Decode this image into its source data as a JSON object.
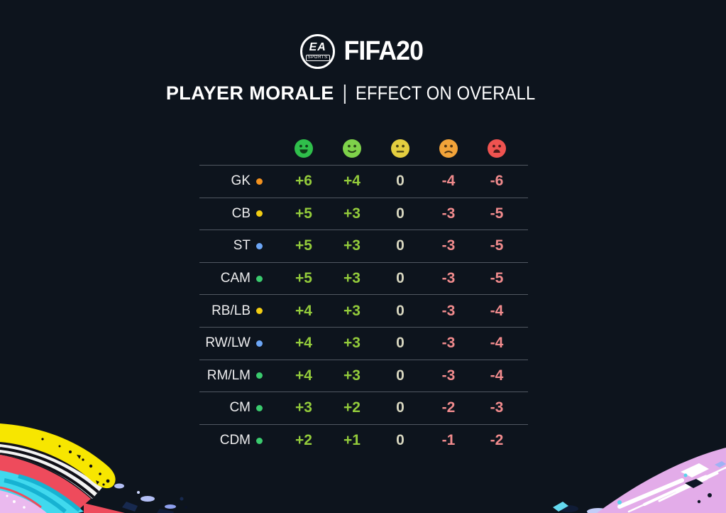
{
  "page": {
    "background": "#0d141d"
  },
  "header": {
    "logo": {
      "brand": "EA",
      "sports_label": "SPORTS",
      "game_title": "FIFA20"
    },
    "title": {
      "left": "PLAYER MORALE",
      "separator": "|",
      "right": "EFFECT ON OVERALL"
    }
  },
  "table": {
    "mood_columns": [
      {
        "name": "very-happy",
        "color": "#2fbf4b",
        "mouth": "open-smile"
      },
      {
        "name": "happy",
        "color": "#7ed24a",
        "mouth": "smile"
      },
      {
        "name": "neutral",
        "color": "#e4ce3f",
        "mouth": "flat"
      },
      {
        "name": "unhappy",
        "color": "#f2a339",
        "mouth": "frown"
      },
      {
        "name": "very-unhappy",
        "color": "#ef5350",
        "mouth": "open-frown"
      }
    ],
    "value_colors": {
      "positive": "#93cb3b",
      "zero": "#d7d6bf",
      "negative": "#f18b8d"
    },
    "dot_colors": {
      "orange": "#f3921f",
      "yellow": "#f2cd13",
      "blue": "#6ca6f6",
      "green": "#3bcb6e"
    },
    "rows": [
      {
        "position": "GK",
        "dot": "orange",
        "values": [
          "+6",
          "+4",
          "0",
          "-4",
          "-6"
        ]
      },
      {
        "position": "CB",
        "dot": "yellow",
        "values": [
          "+5",
          "+3",
          "0",
          "-3",
          "-5"
        ]
      },
      {
        "position": "ST",
        "dot": "blue",
        "values": [
          "+5",
          "+3",
          "0",
          "-3",
          "-5"
        ]
      },
      {
        "position": "CAM",
        "dot": "green",
        "values": [
          "+5",
          "+3",
          "0",
          "-3",
          "-5"
        ]
      },
      {
        "position": "RB/LB",
        "dot": "yellow",
        "values": [
          "+4",
          "+3",
          "0",
          "-3",
          "-4"
        ]
      },
      {
        "position": "RW/LW",
        "dot": "blue",
        "values": [
          "+4",
          "+3",
          "0",
          "-3",
          "-4"
        ]
      },
      {
        "position": "RM/LM",
        "dot": "green",
        "values": [
          "+4",
          "+3",
          "0",
          "-3",
          "-4"
        ]
      },
      {
        "position": "CM",
        "dot": "green",
        "values": [
          "+3",
          "+2",
          "0",
          "-2",
          "-3"
        ]
      },
      {
        "position": "CDM",
        "dot": "green",
        "values": [
          "+2",
          "+1",
          "0",
          "-1",
          "-2"
        ]
      }
    ]
  },
  "chart_data": {
    "type": "table",
    "title": "PLAYER MORALE | EFFECT ON OVERALL",
    "columns": [
      "very_happy",
      "happy",
      "neutral",
      "unhappy",
      "very_unhappy"
    ],
    "rows": [
      {
        "position": "GK",
        "values": [
          6,
          4,
          0,
          -4,
          -6
        ]
      },
      {
        "position": "CB",
        "values": [
          5,
          3,
          0,
          -3,
          -5
        ]
      },
      {
        "position": "ST",
        "values": [
          5,
          3,
          0,
          -3,
          -5
        ]
      },
      {
        "position": "CAM",
        "values": [
          5,
          3,
          0,
          -3,
          -5
        ]
      },
      {
        "position": "RB/LB",
        "values": [
          4,
          3,
          0,
          -3,
          -4
        ]
      },
      {
        "position": "RW/LW",
        "values": [
          4,
          3,
          0,
          -3,
          -4
        ]
      },
      {
        "position": "RM/LM",
        "values": [
          4,
          3,
          0,
          -3,
          -4
        ]
      },
      {
        "position": "CM",
        "values": [
          3,
          2,
          0,
          -2,
          -3
        ]
      },
      {
        "position": "CDM",
        "values": [
          2,
          1,
          0,
          -1,
          -2
        ]
      }
    ]
  }
}
